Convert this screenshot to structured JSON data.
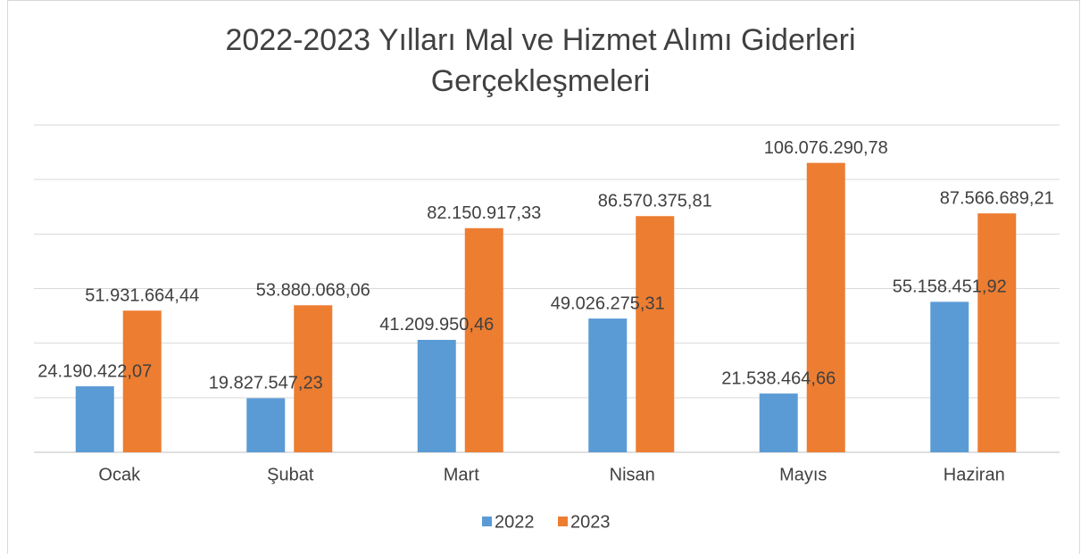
{
  "chart_data": {
    "type": "bar",
    "title": "2022-2023 Yılları Mal ve Hizmet Alımı Giderleri Gerçekleşmeleri",
    "categories": [
      "Ocak",
      "Şubat",
      "Mart",
      "Nisan",
      "Mayıs",
      "Haziran"
    ],
    "series": [
      {
        "name": "2022",
        "color": "#5b9bd5",
        "values": [
          24190422.07,
          19827547.23,
          41209950.46,
          49026275.31,
          21538464.66,
          55158451.92
        ],
        "value_labels": [
          "24.190.422,07",
          "19.827.547,23",
          "41.209.950,46",
          "49.026.275,31",
          "21.538.464,66",
          "55.158.451,92"
        ]
      },
      {
        "name": "2023",
        "color": "#ed7d31",
        "values": [
          51931664.44,
          53880068.06,
          82150917.33,
          86570375.81,
          106076290.78,
          87566689.21
        ],
        "value_labels": [
          "51.931.664,44",
          "53.880.068,06",
          "82.150.917,33",
          "86.570.375,81",
          "106.076.290,78",
          "87.566.689,21"
        ]
      }
    ],
    "ylim": [
      0,
      120000000
    ],
    "yticks": [
      0,
      20000000,
      40000000,
      60000000,
      80000000,
      100000000,
      120000000
    ],
    "grid": true,
    "legend": "bottom"
  }
}
